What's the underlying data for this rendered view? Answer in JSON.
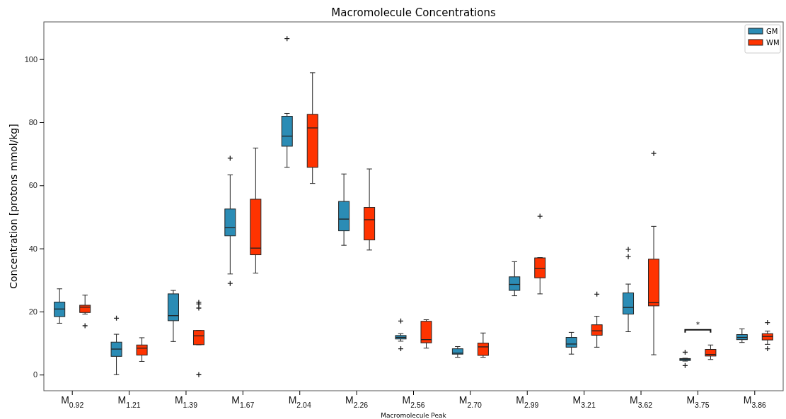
{
  "chart_data": {
    "type": "box",
    "title": "Macromolecule Concentrations",
    "xlabel": "Macromolecule Peak",
    "ylabel": "Concentration [protons mmol/kg]",
    "categories": [
      "M$_{0.92}$",
      "M$_{1.21}$",
      "M$_{1.39}$",
      "M$_{1.67}$",
      "M$_{2.04}$",
      "M$_{2.26}$",
      "M$_{2.56}$",
      "M$_{2.70}$",
      "M$_{2.99}$",
      "M$_{3.21}$",
      "M$_{3.62}$",
      "M$_{3.75}$",
      "M$_{3.86}$"
    ],
    "ylim": [
      -5.1,
      111.8
    ],
    "yticks": [
      0,
      20,
      40,
      60,
      80,
      100
    ],
    "legend": "top right",
    "annotations": [
      "*"
    ],
    "series": [
      {
        "name": "GM",
        "color": "#2b8cb5",
        "boxes": [
          {
            "low": 16.3,
            "q1": 18.4,
            "median": 20.8,
            "q3": 23.0,
            "high": 27.2
          },
          {
            "low": 0,
            "q1": 5.8,
            "median": 8.1,
            "q3": 10.3,
            "high": 12.8,
            "outliers": [
              17.9
            ]
          },
          {
            "low": 10.5,
            "q1": 17.1,
            "median": 18.7,
            "q3": 25.6,
            "high": 26.7
          },
          {
            "low": 31.9,
            "q1": 44.0,
            "median": 46.6,
            "q3": 52.5,
            "high": 63.3,
            "outliers": [
              68.6,
              28.9
            ]
          },
          {
            "low": 65.7,
            "q1": 72.4,
            "median": 75.6,
            "q3": 81.9,
            "high": 82.8,
            "outliers": [
              106.5
            ]
          },
          {
            "low": 41.0,
            "q1": 45.6,
            "median": 49.3,
            "q3": 54.9,
            "high": 63.6
          },
          {
            "low": 10.6,
            "q1": 11.3,
            "median": 11.8,
            "q3": 12.4,
            "high": 13.0,
            "outliers": [
              17.0,
              8.2
            ]
          },
          {
            "low": 5.5,
            "q1": 6.5,
            "median": 6.8,
            "q3": 8.2,
            "high": 8.9
          },
          {
            "low": 25.0,
            "q1": 26.7,
            "median": 28.6,
            "q3": 31.0,
            "high": 35.8
          },
          {
            "low": 6.5,
            "q1": 8.7,
            "median": 9.7,
            "q3": 11.8,
            "high": 13.4
          },
          {
            "low": 13.6,
            "q1": 19.2,
            "median": 21.3,
            "q3": 25.9,
            "high": 28.7,
            "outliers": [
              39.7,
              37.4
            ]
          },
          {
            "low": 4.3,
            "q1": 4.5,
            "median": 4.8,
            "q3": 5.1,
            "high": 5.2,
            "outliers": [
              7.1,
              2.9
            ]
          },
          {
            "low": 10.2,
            "q1": 11.1,
            "median": 11.8,
            "q3": 12.7,
            "high": 14.5
          }
        ]
      },
      {
        "name": "WM",
        "color": "#ff3300",
        "boxes": [
          {
            "low": 19.2,
            "q1": 19.7,
            "median": 21.4,
            "q3": 22.0,
            "high": 25.2,
            "outliers": [
              15.5
            ]
          },
          {
            "low": 4.2,
            "q1": 6.2,
            "median": 8.4,
            "q3": 9.4,
            "high": 11.7
          },
          {
            "low": 9.5,
            "q1": 9.5,
            "median": 12.3,
            "q3": 14.0,
            "high": 14.0,
            "outliers": [
              22.9,
              22.4,
              21.1,
              0
            ]
          },
          {
            "low": 32.2,
            "q1": 38.0,
            "median": 40.1,
            "q3": 55.6,
            "high": 71.8
          },
          {
            "low": 60.6,
            "q1": 65.7,
            "median": 78.2,
            "q3": 82.5,
            "high": 95.7
          },
          {
            "low": 39.5,
            "q1": 42.7,
            "median": 49.1,
            "q3": 53.0,
            "high": 65.2
          },
          {
            "low": 8.4,
            "q1": 10.1,
            "median": 11.1,
            "q3": 16.9,
            "high": 17.4
          },
          {
            "low": 5.5,
            "q1": 6.1,
            "median": 8.8,
            "q3": 10.0,
            "high": 13.2
          },
          {
            "low": 25.6,
            "q1": 30.7,
            "median": 33.7,
            "q3": 37.0,
            "high": 37.1,
            "outliers": [
              50.2
            ]
          },
          {
            "low": 8.7,
            "q1": 12.5,
            "median": 13.9,
            "q3": 15.8,
            "high": 18.5,
            "outliers": [
              25.5
            ]
          },
          {
            "low": 6.3,
            "q1": 21.8,
            "median": 22.8,
            "q3": 36.6,
            "high": 47.0,
            "outliers": [
              70.1
            ]
          },
          {
            "low": 4.8,
            "q1": 5.9,
            "median": 6.4,
            "q3": 8.0,
            "high": 9.4
          },
          {
            "low": 9.6,
            "q1": 11.0,
            "median": 12.1,
            "q3": 13.0,
            "high": 13.8,
            "outliers": [
              16.5,
              8.2
            ]
          }
        ]
      }
    ]
  }
}
